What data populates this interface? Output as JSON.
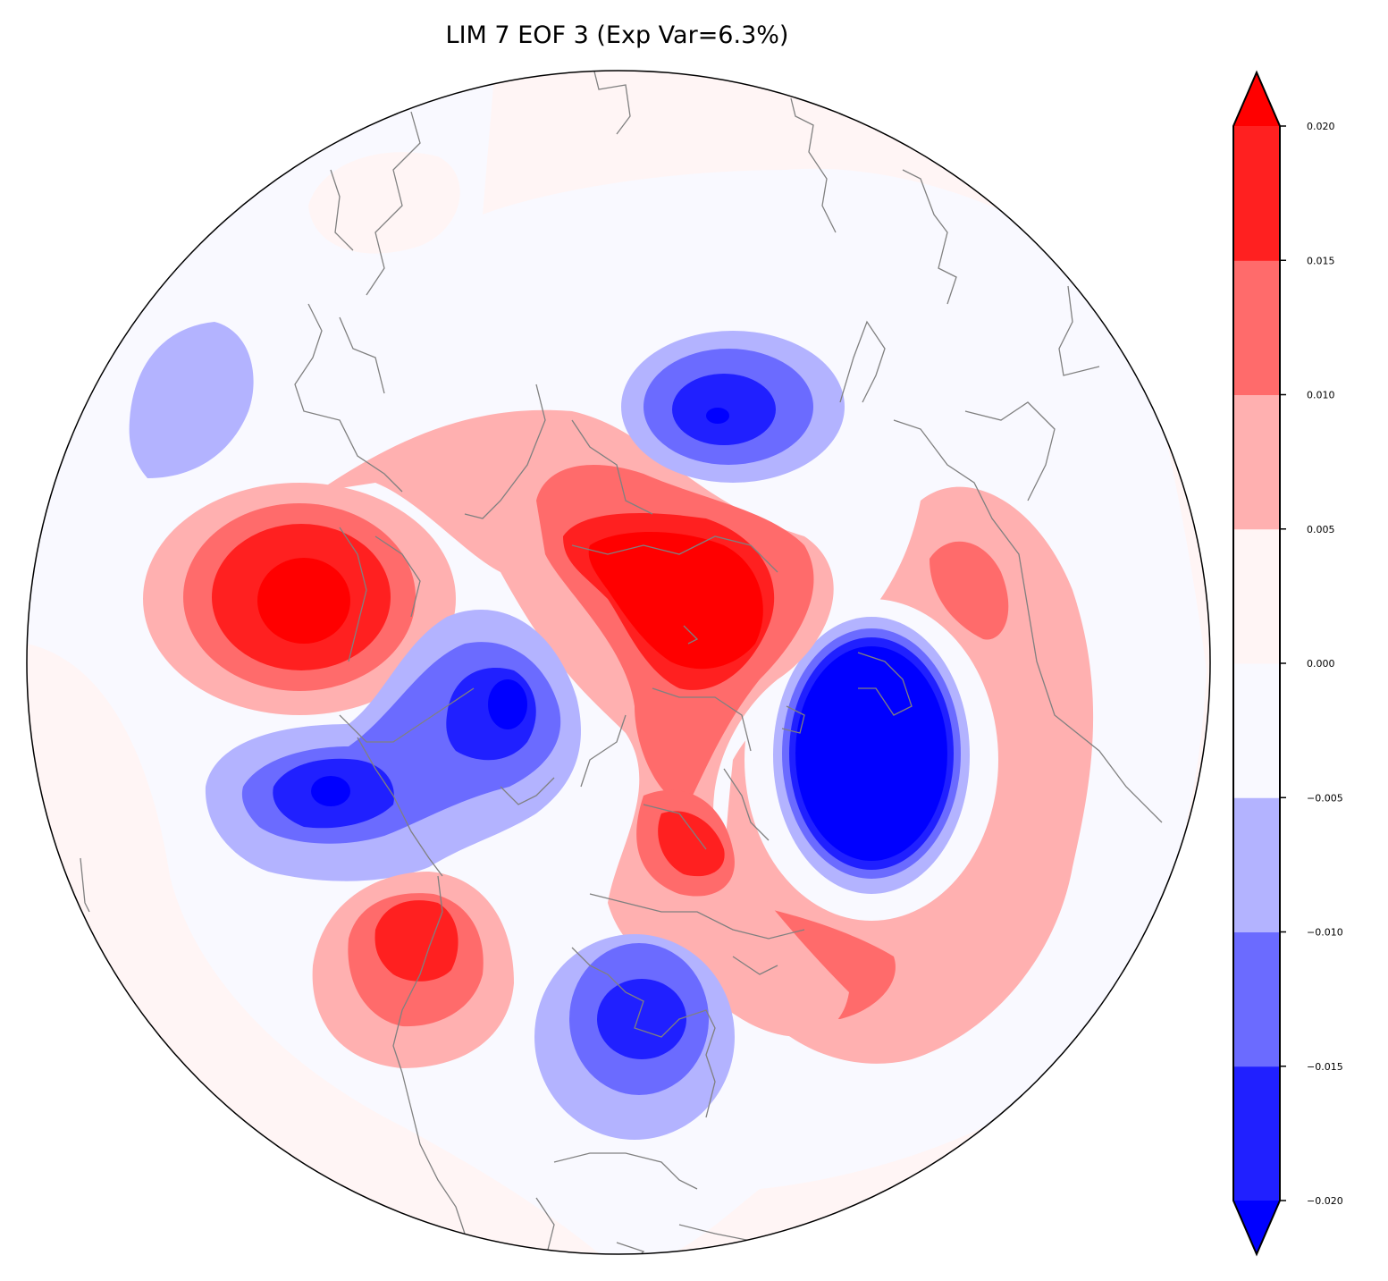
{
  "title": "LIM 7 EOF 3 (Exp Var=6.3%)",
  "map": {
    "projection": "north polar stereographic",
    "coastline_color": "#808080",
    "background_color": "#f9f9ff"
  },
  "colorbar": {
    "levels": [
      -0.02,
      -0.015,
      -0.01,
      -0.005,
      0.0,
      0.005,
      0.01,
      0.015,
      0.02
    ],
    "tick_labels": [
      "0.020",
      "0.015",
      "0.010",
      "0.005",
      "0.000",
      "−0.005",
      "−0.010",
      "−0.015",
      "−0.020"
    ],
    "colors": [
      "#0000ff",
      "#2020ff",
      "#6b6bff",
      "#b3b3ff",
      "#f9f9ff",
      "#fff5f5",
      "#ffb0b0",
      "#ff6b6b",
      "#ff2020",
      "#ff0000"
    ],
    "extend": "both"
  }
}
